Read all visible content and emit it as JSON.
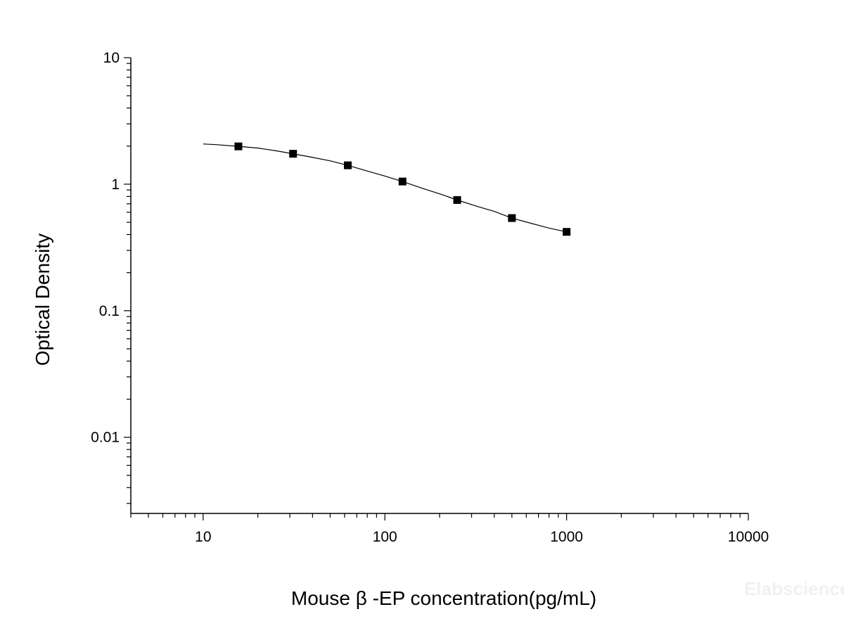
{
  "chart_data": {
    "type": "scatter",
    "title": "",
    "xlabel": "Mouse β -EP concentration(pg/mL)",
    "ylabel": "Optical Density",
    "x_scale": "log",
    "y_scale": "log",
    "xlim": [
      4,
      10000
    ],
    "ylim": [
      0.0025,
      10
    ],
    "x_ticks": [
      10,
      100,
      1000,
      10000
    ],
    "x_tick_labels": [
      "10",
      "100",
      "1000",
      "10000"
    ],
    "y_ticks": [
      0.01,
      0.1,
      1,
      10
    ],
    "y_tick_labels": [
      "0.01",
      "0.1",
      "1",
      "10"
    ],
    "grid": false,
    "legend": "none",
    "series": [
      {
        "marker": "square",
        "color": "#000000",
        "x": [
          15.63,
          31.25,
          62.5,
          125,
          250,
          500,
          1000
        ],
        "y": [
          1.99,
          1.74,
          1.41,
          1.05,
          0.75,
          0.54,
          0.42
        ]
      }
    ],
    "fit_curve": {
      "color": "#000000",
      "x": [
        10,
        12,
        15.63,
        20,
        25,
        31.25,
        40,
        50,
        62.5,
        80,
        100,
        125,
        160,
        200,
        250,
        320,
        400,
        500,
        640,
        800,
        1000
      ],
      "y": [
        2.08,
        2.05,
        1.99,
        1.93,
        1.84,
        1.74,
        1.63,
        1.53,
        1.41,
        1.27,
        1.16,
        1.05,
        0.93,
        0.84,
        0.75,
        0.67,
        0.61,
        0.54,
        0.49,
        0.45,
        0.42
      ]
    },
    "watermark": "Elabscience"
  }
}
